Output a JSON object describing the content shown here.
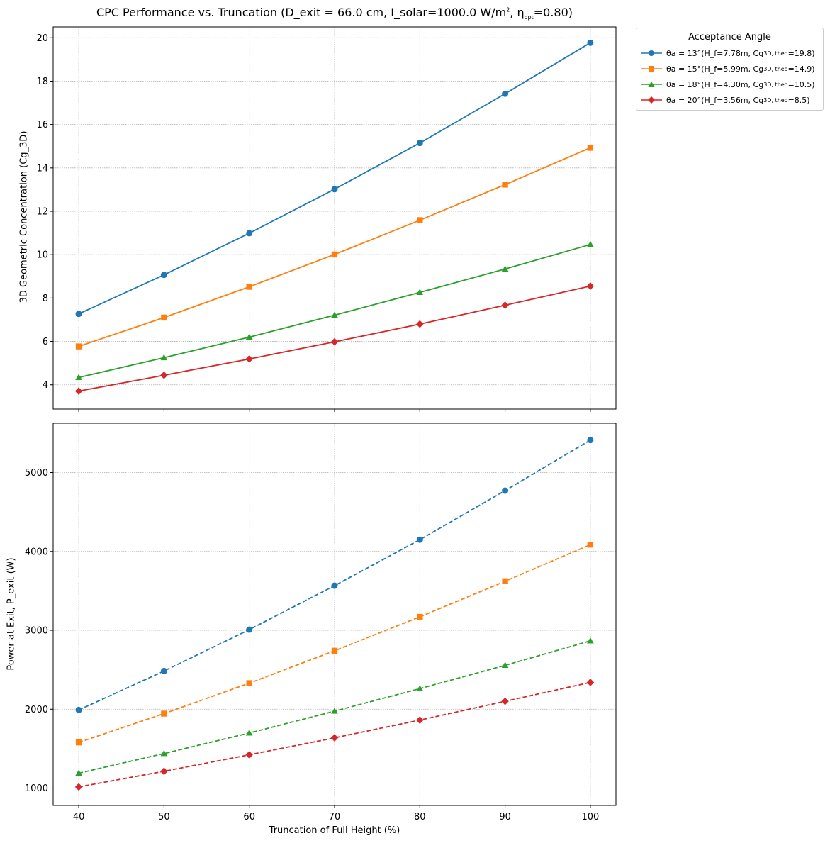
{
  "title": {
    "prefix": "CPC Performance vs. Truncation (D_exit = 66.0 cm, I_solar=1000.0 W/m",
    "sup": "2",
    "mid": ", η",
    "sub": "opt",
    "suffix": "=0.80)"
  },
  "colors": {
    "s13": "#1f77b4",
    "s15": "#ff7f0e",
    "s18": "#2ca02c",
    "s20": "#d62728"
  },
  "legend": {
    "title": "Acceptance Angle",
    "items": [
      {
        "theta": "θa = 13°",
        "detail_a": " (H_f=7.78m, Cg",
        "sub": "3D, theo",
        "detail_b": "=19.8)",
        "marker": "circle"
      },
      {
        "theta": "θa = 15°",
        "detail_a": " (H_f=5.99m, Cg",
        "sub": "3D, theo",
        "detail_b": "=14.9)",
        "marker": "square"
      },
      {
        "theta": "θa = 18°",
        "detail_a": " (H_f=4.30m, Cg",
        "sub": "3D, theo",
        "detail_b": "=10.5)",
        "marker": "triangle"
      },
      {
        "theta": "θa = 20°",
        "detail_a": " (H_f=3.56m, Cg",
        "sub": "3D, theo",
        "detail_b": "=8.5)",
        "marker": "diamond"
      }
    ]
  },
  "chart_data": [
    {
      "type": "line",
      "ylabel": "3D Geometric Concentration (Cg_3D)",
      "xlabel": "",
      "x": [
        40,
        50,
        60,
        70,
        80,
        90,
        100
      ],
      "xlim": [
        37,
        103
      ],
      "ylim": [
        2.88,
        20.5
      ],
      "yticks": [
        4,
        6,
        8,
        10,
        12,
        14,
        16,
        18,
        20
      ],
      "xticks": [
        40,
        50,
        60,
        70,
        80,
        90,
        100
      ],
      "grid": true,
      "line_style": "solid",
      "series": [
        {
          "name": "θa = 13°",
          "marker": "circle",
          "values": [
            7.27,
            9.07,
            10.99,
            13.02,
            15.15,
            17.42,
            19.77
          ]
        },
        {
          "name": "θa = 15°",
          "marker": "square",
          "values": [
            5.77,
            7.1,
            8.52,
            10.01,
            11.59,
            13.23,
            14.93
          ]
        },
        {
          "name": "θa = 18°",
          "marker": "triangle",
          "values": [
            4.34,
            5.25,
            6.2,
            7.21,
            8.26,
            9.34,
            10.47
          ]
        },
        {
          "name": "θa = 20°",
          "marker": "diamond",
          "values": [
            3.71,
            4.44,
            5.19,
            5.98,
            6.8,
            7.67,
            8.55
          ]
        }
      ]
    },
    {
      "type": "line",
      "ylabel": "Power at Exit, P_exit (W)",
      "xlabel": "Truncation of Full Height (%)",
      "x": [
        40,
        50,
        60,
        70,
        80,
        90,
        100
      ],
      "xlim": [
        37,
        103
      ],
      "ylim": [
        780,
        5625
      ],
      "yticks": [
        1000,
        2000,
        3000,
        4000,
        5000
      ],
      "xticks": [
        40,
        50,
        60,
        70,
        80,
        90,
        100
      ],
      "grid": true,
      "line_style": "dashed",
      "series": [
        {
          "name": "θa = 13°",
          "marker": "circle",
          "values": [
            1990,
            2484,
            3009,
            3566,
            4149,
            4771,
            5412
          ]
        },
        {
          "name": "θa = 15°",
          "marker": "square",
          "values": [
            1579,
            1944,
            2330,
            2741,
            3171,
            3622,
            4086
          ]
        },
        {
          "name": "θa = 18°",
          "marker": "triangle",
          "values": [
            1189,
            1438,
            1698,
            1975,
            2261,
            2556,
            2866
          ]
        },
        {
          "name": "θa = 20°",
          "marker": "diamond",
          "values": [
            1015,
            1213,
            1422,
            1637,
            1862,
            2100,
            2340
          ]
        }
      ]
    }
  ]
}
